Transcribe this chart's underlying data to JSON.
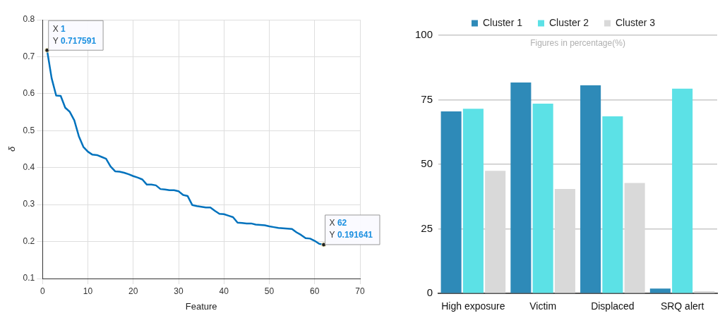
{
  "chart_data": [
    {
      "type": "line",
      "xlabel": "Feature",
      "ylabel": "δ",
      "x": [
        1,
        2,
        3,
        4,
        5,
        6,
        7,
        8,
        9,
        10,
        11,
        12,
        13,
        14,
        15,
        16,
        17,
        18,
        19,
        20,
        21,
        22,
        23,
        24,
        25,
        26,
        27,
        28,
        29,
        30,
        31,
        32,
        33,
        34,
        35,
        36,
        37,
        38,
        39,
        40,
        41,
        42,
        43,
        44,
        45,
        46,
        47,
        48,
        49,
        50,
        51,
        52,
        53,
        54,
        55,
        56,
        57,
        58,
        59,
        60,
        61,
        62
      ],
      "series": [
        {
          "color": "#0072bd",
          "values": [
            0.717591,
            0.642,
            0.595,
            0.594,
            0.562,
            0.551,
            0.528,
            0.485,
            0.456,
            0.443,
            0.435,
            0.434,
            0.429,
            0.424,
            0.403,
            0.39,
            0.389,
            0.386,
            0.382,
            0.377,
            0.373,
            0.368,
            0.354,
            0.354,
            0.352,
            0.342,
            0.341,
            0.339,
            0.339,
            0.336,
            0.326,
            0.323,
            0.299,
            0.296,
            0.294,
            0.292,
            0.292,
            0.283,
            0.275,
            0.274,
            0.27,
            0.266,
            0.251,
            0.25,
            0.249,
            0.249,
            0.246,
            0.245,
            0.244,
            0.241,
            0.239,
            0.237,
            0.236,
            0.235,
            0.234,
            0.225,
            0.218,
            0.209,
            0.208,
            0.202,
            0.194,
            0.191641
          ]
        }
      ],
      "xlim": [
        0,
        70
      ],
      "xticks": [
        0,
        10,
        20,
        30,
        40,
        50,
        60,
        70
      ],
      "ylim": [
        0.1,
        0.8
      ],
      "yticks": [
        0.1,
        0.2,
        0.3,
        0.4,
        0.5,
        0.6,
        0.7,
        0.8
      ],
      "grid": true,
      "annotations": [
        {
          "text": "X 1\nY 0.717591",
          "x": 1,
          "y": 0.717591
        },
        {
          "text": "X 62\nY 0.191641",
          "x": 62,
          "y": 0.191641
        }
      ]
    },
    {
      "type": "bar",
      "categories": [
        "High exposure",
        "Victim",
        "Displaced",
        "SRQ alert"
      ],
      "series": [
        {
          "name": "Cluster 1",
          "color": "#2e8ab8",
          "values": [
            70.5,
            81.7,
            80.6,
            1.9
          ]
        },
        {
          "name": "Cluster 2",
          "color": "#5ce1e6",
          "values": [
            71.5,
            73.5,
            68.6,
            79.3
          ]
        },
        {
          "name": "Cluster 3",
          "color": "#d9d9d9",
          "values": [
            47.5,
            40.5,
            42.8,
            0.9
          ]
        }
      ],
      "ylim": [
        0,
        100
      ],
      "yticks": [
        0,
        25,
        50,
        75,
        100
      ],
      "grid": "y",
      "legend": "top",
      "annotations": [
        "Figures in percentage(%)"
      ]
    }
  ]
}
